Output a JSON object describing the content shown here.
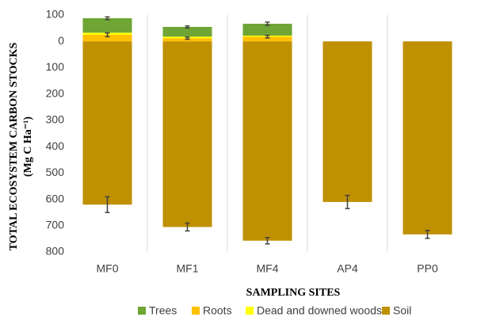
{
  "chart_data": {
    "type": "bar",
    "x_label": "SAMPLING SITES",
    "y_label": [
      "TOTAL ECOSYSTEM CARBON STOCKS",
      "(Mg C Ha⁻¹)"
    ],
    "categories": [
      "MF0",
      "MF1",
      "MF4",
      "AP4",
      "PP0"
    ],
    "series": [
      {
        "name": "Trees",
        "color": "#6ea535",
        "values": [
          55,
          37,
          45,
          0,
          0
        ],
        "errors": [
          5,
          4,
          6,
          null,
          null
        ]
      },
      {
        "name": "Roots",
        "color": "#ffc000",
        "values": [
          25,
          12,
          18,
          0,
          0
        ],
        "errors": [
          7,
          4,
          5,
          null,
          null
        ]
      },
      {
        "name": "Dead and downed woods",
        "color": "#ffff00",
        "values": [
          8,
          6,
          4,
          0,
          0
        ]
      },
      {
        "name": "Soil",
        "color": "#bf9000",
        "values": [
          -620,
          -705,
          -757,
          -610,
          -733
        ],
        "errors": [
          30,
          15,
          12,
          25,
          15
        ]
      }
    ],
    "ylim": [
      -800,
      100
    ],
    "yticks": [
      {
        "value": -800,
        "label": "800"
      },
      {
        "value": -700,
        "label": "700"
      },
      {
        "value": -600,
        "label": "600"
      },
      {
        "value": -500,
        "label": "500"
      },
      {
        "value": -400,
        "label": "400"
      },
      {
        "value": -300,
        "label": "300"
      },
      {
        "value": -200,
        "label": "200"
      },
      {
        "value": -100,
        "label": "100"
      },
      0,
      100
    ],
    "grid": true,
    "legend": "bottom"
  }
}
